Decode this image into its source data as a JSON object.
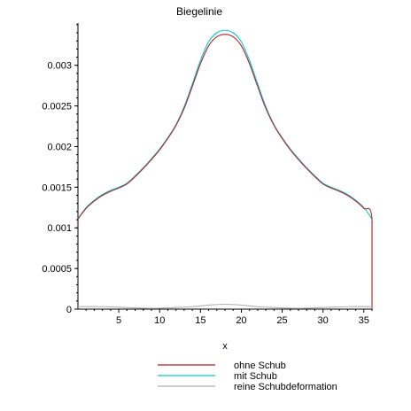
{
  "chart_data": {
    "type": "line",
    "title": "Biegelinie",
    "xlabel": "x",
    "ylabel": "",
    "xlim": [
      0,
      36
    ],
    "ylim": [
      0,
      0.0035
    ],
    "grid": false,
    "legend_position": "bottom",
    "x_ticks": [
      5,
      10,
      15,
      20,
      25,
      30,
      35
    ],
    "y_ticks": [
      0,
      0.0005,
      0.001,
      0.0015,
      0.002,
      0.0025,
      0.003
    ],
    "x_tick_labels": [
      "5",
      "10",
      "15",
      "20",
      "25",
      "30",
      "35"
    ],
    "y_tick_labels": [
      "0",
      "0.0005",
      "0.001",
      "0.0015",
      "0.002",
      "0.0025",
      "0.003"
    ],
    "series": [
      {
        "name": "ohne Schub",
        "color": "#b22222",
        "x": [
          0,
          1,
          2,
          3,
          4,
          5,
          6,
          7,
          8,
          9,
          10,
          11,
          12,
          13,
          14,
          15,
          16,
          17,
          18,
          19,
          20,
          21,
          22,
          23,
          24,
          25,
          26,
          27,
          28,
          29,
          30,
          31,
          32,
          33,
          34,
          35,
          36,
          36
        ],
        "y": [
          0.00111,
          0.00124,
          0.00133,
          0.0014,
          0.00145,
          0.00149,
          0.00154,
          0.00163,
          0.00173,
          0.00184,
          0.00196,
          0.0021,
          0.00226,
          0.00247,
          0.00274,
          0.00302,
          0.00324,
          0.00335,
          0.00338,
          0.00335,
          0.00324,
          0.00302,
          0.00274,
          0.00247,
          0.00226,
          0.0021,
          0.00196,
          0.00184,
          0.00173,
          0.00163,
          0.00154,
          0.00149,
          0.00145,
          0.0014,
          0.00133,
          0.00124,
          0.00111,
          0
        ]
      },
      {
        "name": "mit Schub",
        "color": "#00cccc",
        "x": [
          0,
          1,
          2,
          3,
          4,
          5,
          6,
          7,
          8,
          9,
          10,
          11,
          12,
          13,
          14,
          15,
          16,
          17,
          18,
          19,
          20,
          21,
          22,
          23,
          24,
          25,
          26,
          27,
          28,
          29,
          30,
          31,
          32,
          33,
          34,
          35,
          36
        ],
        "y": [
          0.00111,
          0.00125,
          0.00134,
          0.00141,
          0.00146,
          0.0015,
          0.00155,
          0.00164,
          0.00174,
          0.00185,
          0.00197,
          0.00211,
          0.00227,
          0.00249,
          0.00277,
          0.00306,
          0.00329,
          0.0034,
          0.00343,
          0.0034,
          0.00329,
          0.00306,
          0.00277,
          0.00249,
          0.00227,
          0.00211,
          0.00197,
          0.00185,
          0.00174,
          0.00164,
          0.00155,
          0.0015,
          0.00146,
          0.00141,
          0.00134,
          0.00125,
          0.00111
        ]
      },
      {
        "name": "reine Schubdeformation",
        "color": "#b0b0b0",
        "x": [
          0,
          3,
          6,
          9,
          12,
          14,
          16,
          18,
          20,
          22,
          24,
          27,
          30,
          33,
          36
        ],
        "y": [
          3e-05,
          3e-05,
          2e-05,
          1e-05,
          2e-05,
          3e-05,
          5e-05,
          6e-05,
          5e-05,
          3e-05,
          2e-05,
          1e-05,
          2e-05,
          3e-05,
          3e-05
        ]
      }
    ]
  }
}
